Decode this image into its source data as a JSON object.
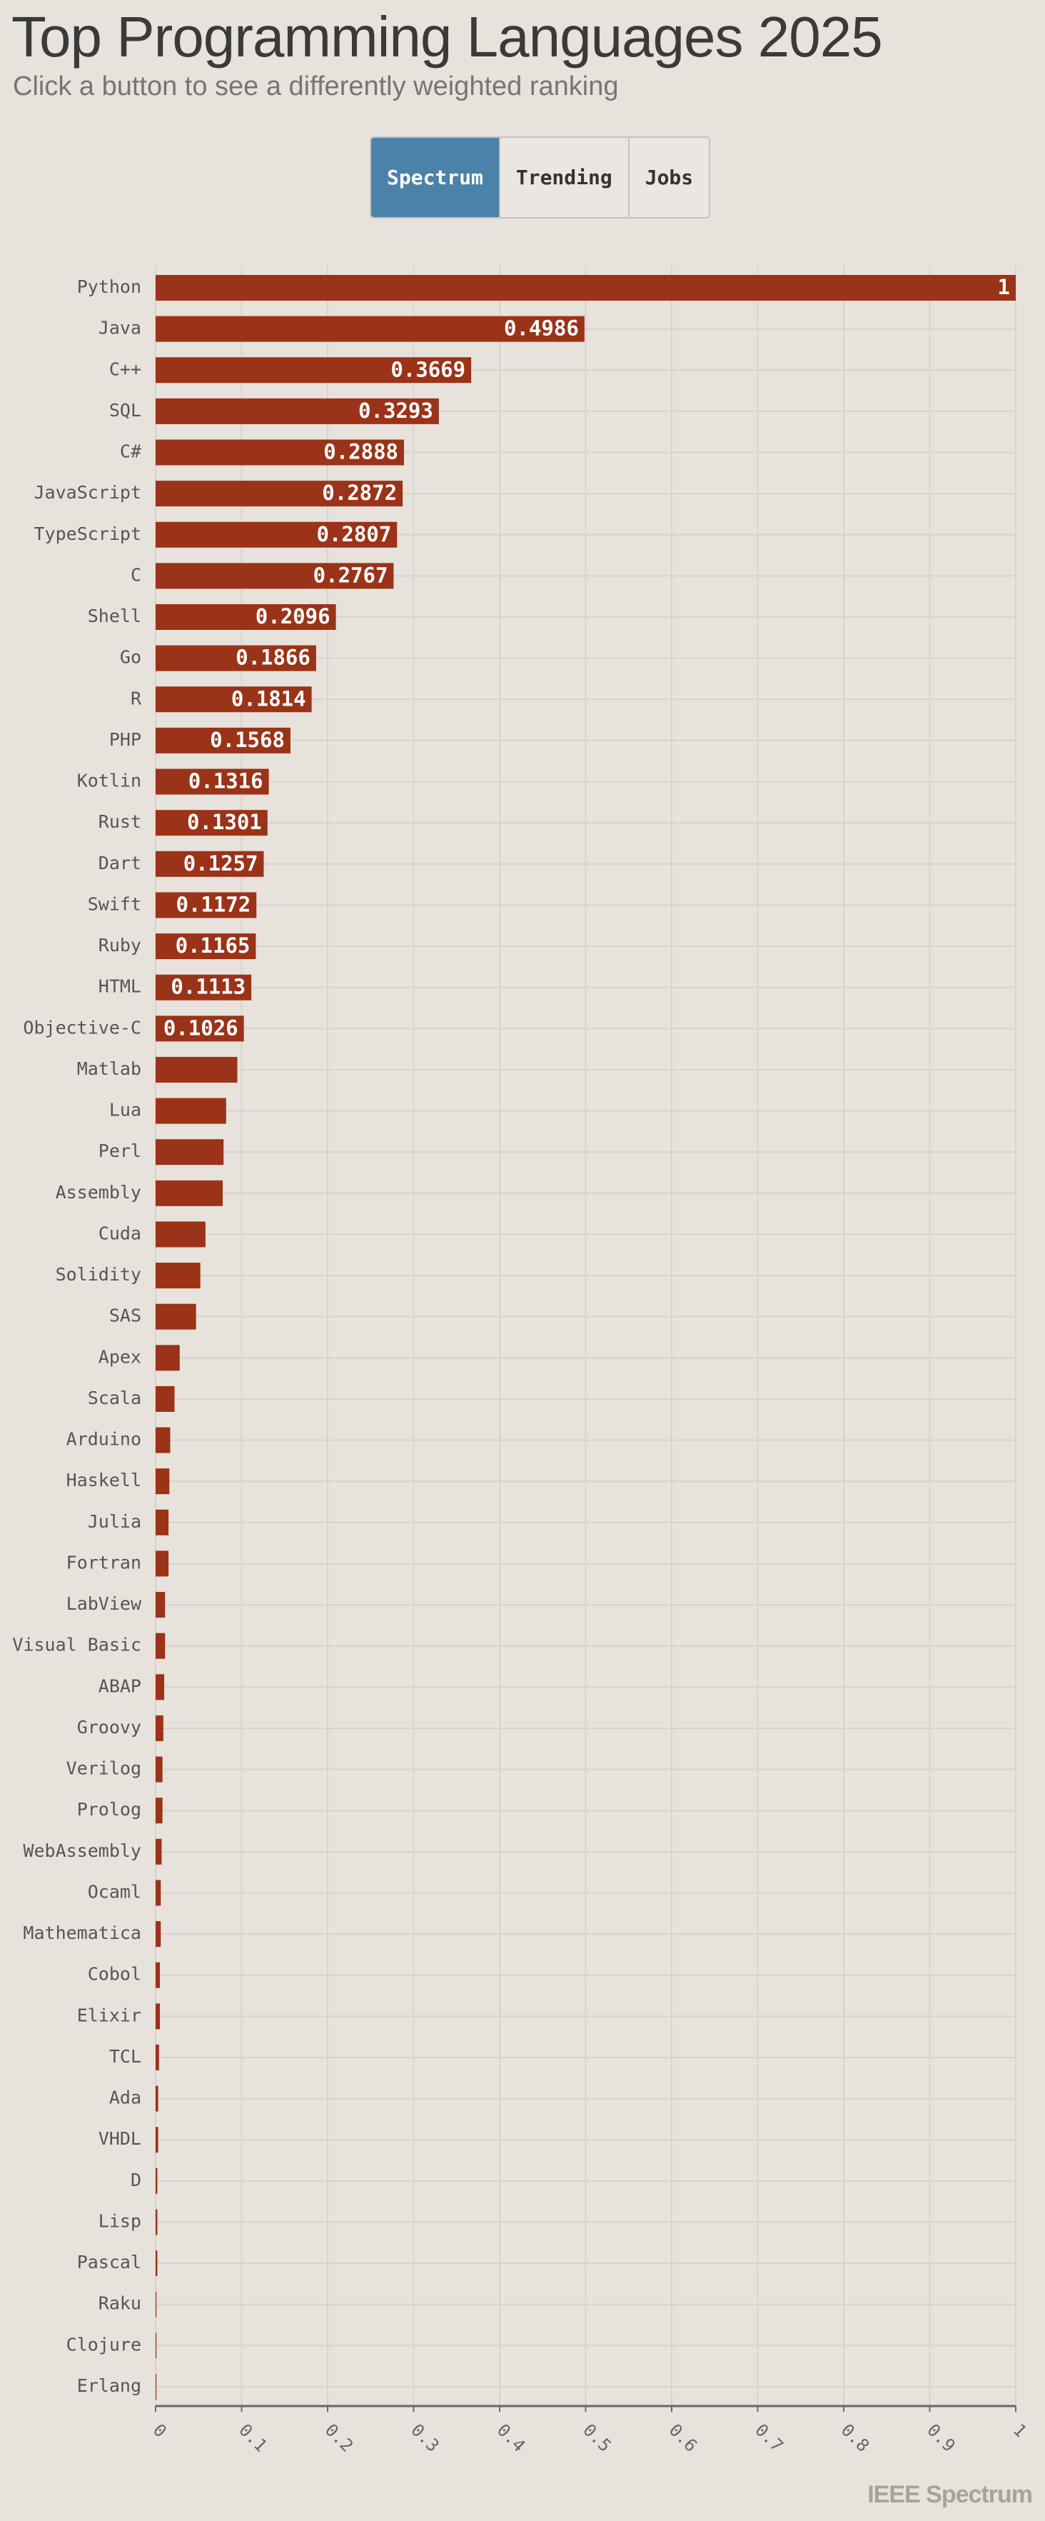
{
  "chart_data": {
    "type": "bar",
    "orientation": "horizontal",
    "title": "Top Programming Languages 2025",
    "subtitle": "Click a button to see a differently weighted ranking",
    "categories": [
      "Python",
      "Java",
      "C++",
      "SQL",
      "C#",
      "JavaScript",
      "TypeScript",
      "C",
      "Shell",
      "Go",
      "R",
      "PHP",
      "Kotlin",
      "Rust",
      "Dart",
      "Swift",
      "Ruby",
      "HTML",
      "Objective-C",
      "Matlab",
      "Lua",
      "Perl",
      "Assembly",
      "Cuda",
      "Solidity",
      "SAS",
      "Apex",
      "Scala",
      "Arduino",
      "Haskell",
      "Julia",
      "Fortran",
      "LabView",
      "Visual Basic",
      "ABAP",
      "Groovy",
      "Verilog",
      "Prolog",
      "WebAssembly",
      "Ocaml",
      "Mathematica",
      "Cobol",
      "Elixir",
      "TCL",
      "Ada",
      "VHDL",
      "D",
      "Lisp",
      "Pascal",
      "Raku",
      "Clojure",
      "Erlang"
    ],
    "values": [
      1,
      0.4986,
      0.3669,
      0.3293,
      0.2888,
      0.2872,
      0.2807,
      0.2767,
      0.2096,
      0.1866,
      0.1814,
      0.1568,
      0.1316,
      0.1301,
      0.1257,
      0.1172,
      0.1165,
      0.1113,
      0.1026,
      0.095,
      0.082,
      0.079,
      0.078,
      0.058,
      0.052,
      0.047,
      0.028,
      0.022,
      0.017,
      0.016,
      0.015,
      0.015,
      0.011,
      0.011,
      0.01,
      0.009,
      0.008,
      0.008,
      0.007,
      0.006,
      0.006,
      0.005,
      0.005,
      0.004,
      0.003,
      0.003,
      0.002,
      0.002,
      0.002,
      0.001,
      0.001,
      0.001
    ],
    "value_labels": [
      "1",
      "0.4986",
      "0.3669",
      "0.3293",
      "0.2888",
      "0.2872",
      "0.2807",
      "0.2767",
      "0.2096",
      "0.1866",
      "0.1814",
      "0.1568",
      "0.1316",
      "0.1301",
      "0.1257",
      "0.1172",
      "0.1165",
      "0.1113",
      "0.1026",
      null,
      null,
      null,
      null,
      null,
      null,
      null,
      null,
      null,
      null,
      null,
      null,
      null,
      null,
      null,
      null,
      null,
      null,
      null,
      null,
      null,
      null,
      null,
      null,
      null,
      null,
      null,
      null,
      null,
      null,
      null,
      null,
      null
    ],
    "color": "#9a3318",
    "xlim": [
      0,
      1
    ],
    "xticks": [
      0,
      0.1,
      0.2,
      0.3,
      0.4,
      0.5,
      0.6,
      0.7,
      0.8,
      0.9,
      1
    ],
    "grid": true
  },
  "buttons": [
    "Spectrum",
    "Trending",
    "Jobs"
  ],
  "active_button": 0,
  "footer": "IEEE Spectrum"
}
